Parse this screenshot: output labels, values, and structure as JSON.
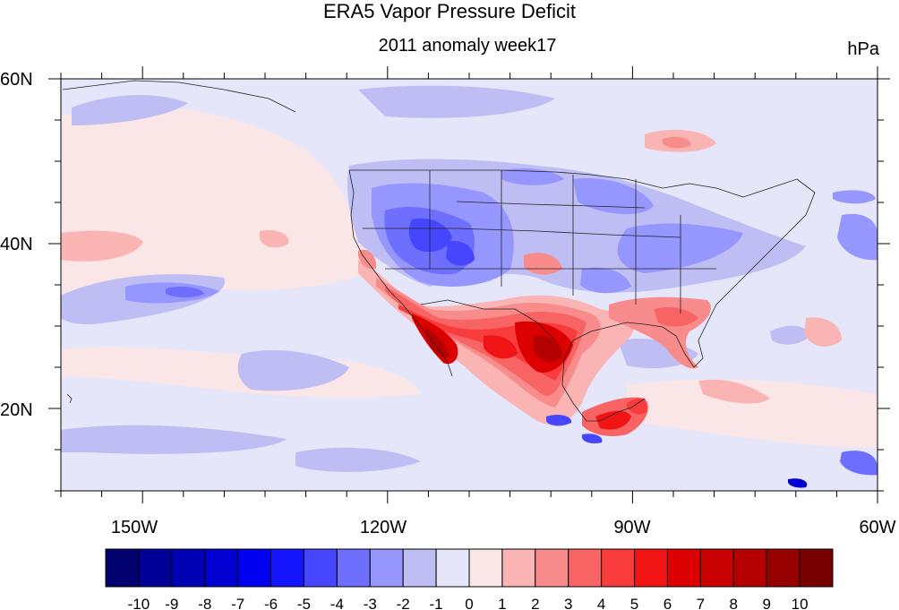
{
  "title": "ERA5 Vapor Pressure Deficit",
  "subtitle": "2011 anomaly week17",
  "units": "hPa",
  "lat_labels": [
    "60N",
    "40N",
    "20N"
  ],
  "lon_labels": [
    "150W",
    "120W",
    "90W",
    "60W"
  ],
  "colorbar": {
    "labels": [
      "-10",
      "-9",
      "-8",
      "-7",
      "-6",
      "-5",
      "-4",
      "-3",
      "-2",
      "-1",
      "0",
      "1",
      "2",
      "3",
      "4",
      "5",
      "6",
      "7",
      "8",
      "9",
      "10"
    ],
    "colors": [
      "#00006e",
      "#000096",
      "#0000b4",
      "#0000d2",
      "#0000f0",
      "#1414ff",
      "#4646ff",
      "#6e6eff",
      "#9696ff",
      "#bebef5",
      "#e6e6fa",
      "#fae6e6",
      "#fab4b4",
      "#f88c8c",
      "#f86464",
      "#f83c3c",
      "#f01414",
      "#dc0000",
      "#c80000",
      "#b40000",
      "#960000",
      "#780000"
    ]
  },
  "map": {
    "lon_range": [
      -160,
      -60
    ],
    "lat_range": [
      10,
      60
    ],
    "background_field_color": "#e6e6fa"
  }
}
